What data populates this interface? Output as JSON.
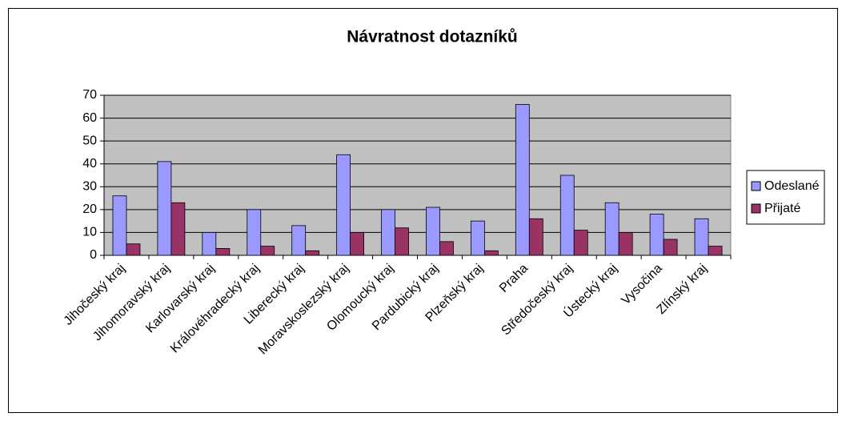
{
  "chart_data": {
    "type": "bar",
    "title": "Návratnost dotazníků",
    "categories": [
      "Jihočeský kraj",
      "Jihomoravský kraj",
      "Karlovarský kraj",
      "Královéhradecký kraj",
      "Liberecký kraj",
      "Moravskoslezský kraj",
      "Olomoucký kraj",
      "Pardubický kraj",
      "Plzeňský kraj",
      "Praha",
      "Středočeský kraj",
      "Ústecký kraj",
      "Vysočina",
      "Zlínský kraj"
    ],
    "series": [
      {
        "name": "Odeslané",
        "color": "#9999ff",
        "values": [
          26,
          41,
          10,
          20,
          13,
          44,
          20,
          21,
          15,
          66,
          35,
          23,
          18,
          16
        ]
      },
      {
        "name": "Přijaté",
        "color": "#993366",
        "values": [
          5,
          23,
          3,
          4,
          2,
          10,
          12,
          6,
          2,
          16,
          11,
          10,
          7,
          4
        ]
      }
    ],
    "ylim": [
      0,
      70
    ],
    "yticks": [
      0,
      10,
      20,
      30,
      40,
      50,
      60,
      70
    ],
    "grid": true,
    "legend": "right",
    "plot_background": "#c0c0c0"
  }
}
